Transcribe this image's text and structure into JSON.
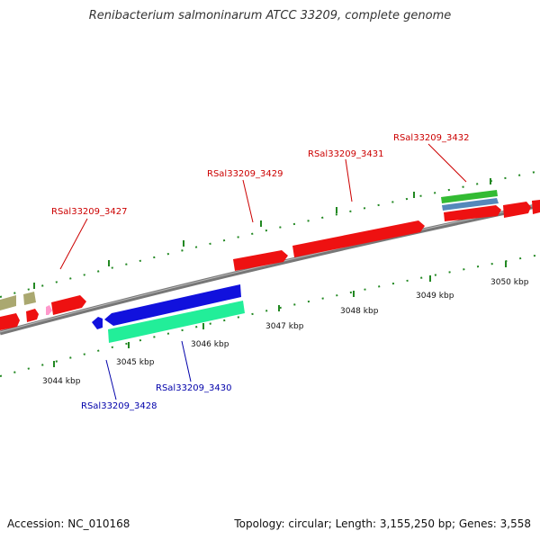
{
  "title": "Renibacterium salmoninarum ATCC 33209, complete genome",
  "ticks": [
    "3044 kbp",
    "3045 kbp",
    "3046 kbp",
    "3047 kbp",
    "3048 kbp",
    "3049 kbp",
    "3050 kbp"
  ],
  "genes_top": [
    {
      "label": "RSal33209_3427",
      "color": "#cc0000"
    },
    {
      "label": "RSal33209_3429",
      "color": "#cc0000"
    },
    {
      "label": "RSal33209_3431",
      "color": "#cc0000"
    },
    {
      "label": "RSal33209_3432",
      "color": "#cc0000"
    }
  ],
  "genes_bottom": [
    {
      "label": "RSal33209_3428",
      "color": "#0000aa"
    },
    {
      "label": "RSal33209_3430",
      "color": "#0000aa"
    }
  ],
  "colors": {
    "forward_gene": "#ee1111",
    "reverse_gene": "#1111dd",
    "rna_gene": "#22ee99",
    "green_gene": "#33bb33",
    "steel_gene": "#5588bb",
    "olive_gene": "#aaa870",
    "pink_gene": "#ff99cc",
    "backbone": "#777777",
    "ruler": "#228822"
  },
  "footer": {
    "accession": "Accession: NC_010168",
    "summary": "Topology: circular; Length: 3,155,250 bp; Genes: 3,558"
  }
}
